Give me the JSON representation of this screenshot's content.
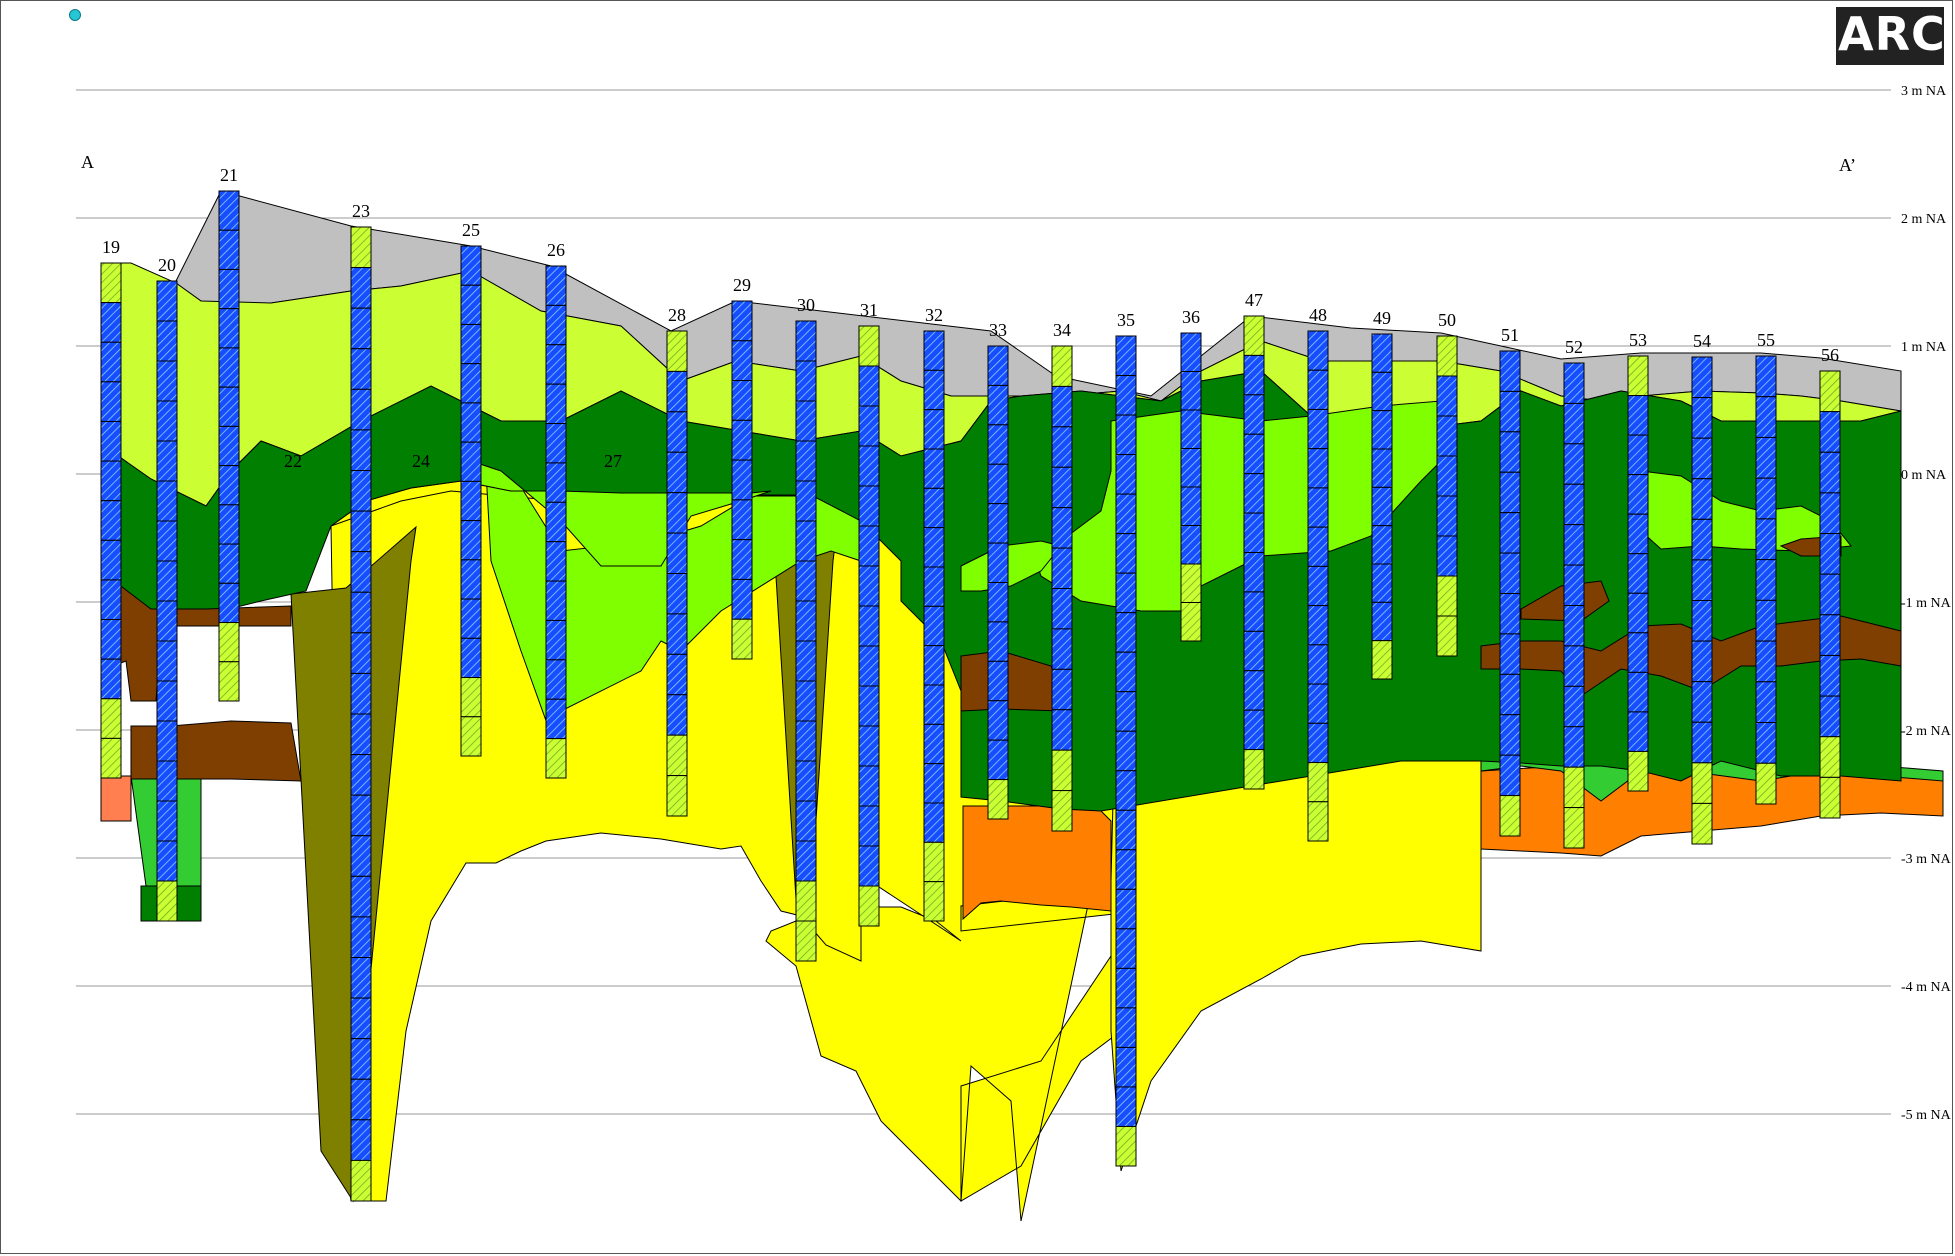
{
  "logo": {
    "text": "ARC"
  },
  "section": {
    "start_label": "A",
    "end_label": "A’"
  },
  "elevation_axis": {
    "unit": "m NAP",
    "ticks": [
      3,
      2,
      1,
      0,
      -1,
      -2,
      -3,
      -4,
      -5
    ],
    "tick_labels": [
      "3  m NA",
      "2  m NA",
      "1  m NA",
      "0  m NA",
      "-1  m NA",
      "-2  m NA",
      "-3  m NA",
      "-4  m NA",
      "-5  m NA"
    ]
  },
  "boreholes": [
    "19",
    "20",
    "21",
    "23",
    "25",
    "26",
    "28",
    "29",
    "30",
    "31",
    "32",
    "33",
    "34",
    "35",
    "36",
    "47",
    "48",
    "49",
    "50",
    "51",
    "52",
    "53",
    "54",
    "55",
    "56"
  ],
  "interpolated_labels": [
    "22",
    "24",
    "27"
  ],
  "colors": {
    "surface": "#c0c0c0",
    "light_yellowgreen": "#ccff33",
    "dark_green": "#007f00",
    "bright_green": "#7fff00",
    "yellow": "#ffff00",
    "brown": "#7f3f00",
    "olive": "#7f7f00",
    "orange": "#ff7f00",
    "salmon": "#ff7f50",
    "mid_green": "#33cc33",
    "borehole_blue": "#1a4cff",
    "grid": "#999999"
  }
}
